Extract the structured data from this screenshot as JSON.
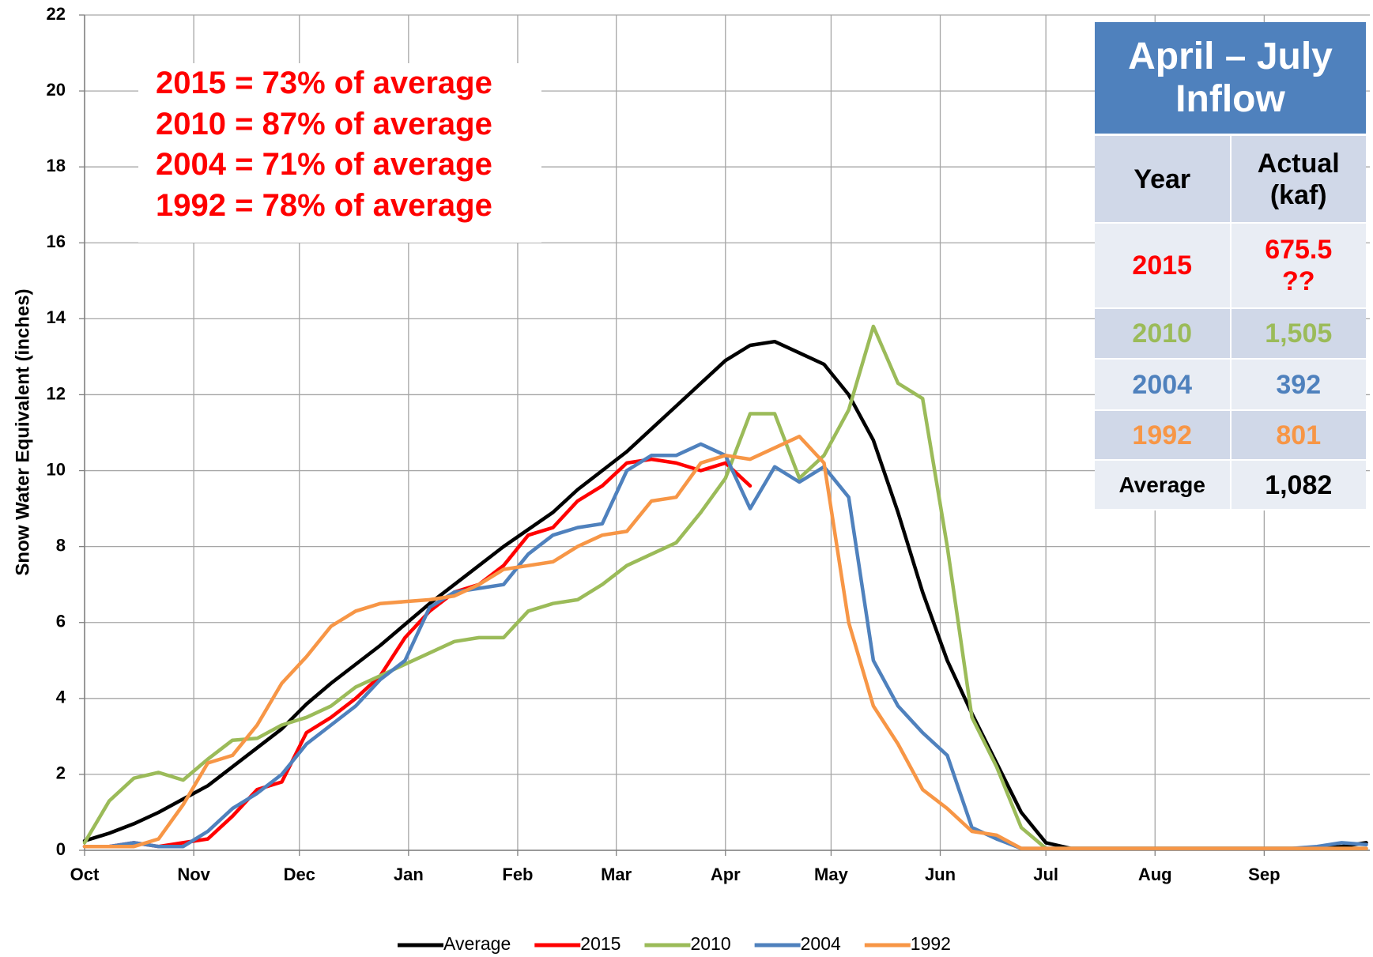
{
  "chart_data": {
    "type": "line",
    "y_label": "Snow Water Equivalent (inches)",
    "xlim": [
      0,
      365
    ],
    "xticks": [
      {
        "value": 0,
        "label": "Oct"
      },
      {
        "value": 31,
        "label": "Nov"
      },
      {
        "value": 61,
        "label": "Dec"
      },
      {
        "value": 92,
        "label": "Jan"
      },
      {
        "value": 123,
        "label": "Feb"
      },
      {
        "value": 151,
        "label": "Mar"
      },
      {
        "value": 182,
        "label": "Apr"
      },
      {
        "value": 212,
        "label": "May"
      },
      {
        "value": 243,
        "label": "Jun"
      },
      {
        "value": 273,
        "label": "Jul"
      },
      {
        "value": 304,
        "label": "Aug"
      },
      {
        "value": 335,
        "label": "Sep"
      }
    ],
    "ylim": [
      0,
      22
    ],
    "yticks": [
      0,
      2,
      4,
      6,
      8,
      10,
      12,
      14,
      16,
      18,
      20,
      22
    ],
    "grid": true,
    "legend": "bottom",
    "x": [
      0,
      7,
      14,
      21,
      28,
      35,
      42,
      49,
      56,
      63,
      70,
      77,
      84,
      91,
      98,
      105,
      112,
      119,
      126,
      133,
      140,
      147,
      154,
      161,
      168,
      175,
      182,
      189,
      196,
      203,
      210,
      217,
      224,
      231,
      238,
      245,
      252,
      259,
      266,
      273,
      280,
      287,
      294,
      301,
      308,
      315,
      322,
      329,
      336,
      343,
      350,
      357,
      364
    ],
    "series": [
      {
        "name": "Average",
        "color": "#000000",
        "values": [
          0.25,
          0.45,
          0.7,
          1.0,
          1.35,
          1.7,
          2.2,
          2.7,
          3.2,
          3.85,
          4.4,
          4.9,
          5.4,
          5.95,
          6.5,
          7.0,
          7.5,
          8.0,
          8.45,
          8.9,
          9.5,
          10.0,
          10.5,
          11.1,
          11.7,
          12.3,
          12.9,
          13.3,
          13.4,
          13.1,
          12.8,
          12.0,
          10.8,
          8.9,
          6.8,
          5.0,
          3.6,
          2.3,
          1.0,
          0.2,
          0.05,
          0.05,
          0.05,
          0.05,
          0.05,
          0.05,
          0.05,
          0.05,
          0.05,
          0.05,
          0.05,
          0.1,
          0.2
        ]
      },
      {
        "name": "2015",
        "color": "#ff0000",
        "values": [
          0.1,
          0.1,
          0.2,
          0.1,
          0.2,
          0.3,
          0.9,
          1.6,
          1.8,
          3.1,
          3.5,
          4.0,
          4.6,
          5.6,
          6.3,
          6.8,
          7.0,
          7.5,
          8.3,
          8.5,
          9.2,
          9.6,
          10.2,
          10.3,
          10.2,
          10.0,
          10.2,
          9.6,
          null,
          null,
          null,
          null,
          null,
          null,
          null,
          null,
          null,
          null,
          null,
          null,
          null,
          null,
          null,
          null,
          null,
          null,
          null,
          null,
          null,
          null,
          null,
          null,
          null
        ]
      },
      {
        "name": "2010",
        "color": "#9bbb59",
        "values": [
          0.2,
          1.3,
          1.9,
          2.05,
          1.85,
          2.4,
          2.9,
          2.95,
          3.3,
          3.5,
          3.8,
          4.3,
          4.6,
          4.9,
          5.2,
          5.5,
          5.6,
          5.6,
          6.3,
          6.5,
          6.6,
          7.0,
          7.5,
          7.8,
          8.1,
          8.9,
          9.8,
          11.5,
          11.5,
          9.8,
          10.4,
          11.6,
          13.8,
          12.3,
          11.9,
          8.0,
          3.5,
          2.2,
          0.6,
          0.05,
          0.05,
          0.05,
          0.05,
          0.05,
          0.05,
          0.05,
          0.05,
          0.05,
          0.05,
          0.05,
          0.05,
          0.05,
          0.05
        ]
      },
      {
        "name": "2004",
        "color": "#4f81bd",
        "values": [
          0.1,
          0.1,
          0.2,
          0.1,
          0.1,
          0.5,
          1.1,
          1.5,
          2.0,
          2.8,
          3.3,
          3.8,
          4.5,
          5.0,
          6.4,
          6.8,
          6.9,
          7.0,
          7.8,
          8.3,
          8.5,
          8.6,
          10.0,
          10.4,
          10.4,
          10.7,
          10.4,
          9.0,
          10.1,
          9.7,
          10.1,
          9.3,
          5.0,
          3.8,
          3.1,
          2.5,
          0.6,
          0.3,
          0.05,
          0.05,
          0.05,
          0.05,
          0.05,
          0.05,
          0.05,
          0.05,
          0.05,
          0.05,
          0.05,
          0.05,
          0.1,
          0.2,
          0.15
        ]
      },
      {
        "name": "1992",
        "color": "#f79646",
        "values": [
          0.1,
          0.1,
          0.1,
          0.3,
          1.2,
          2.3,
          2.5,
          3.3,
          4.4,
          5.1,
          5.9,
          6.3,
          6.5,
          6.55,
          6.6,
          6.7,
          7.0,
          7.4,
          7.5,
          7.6,
          8.0,
          8.3,
          8.4,
          9.2,
          9.3,
          10.2,
          10.4,
          10.3,
          10.6,
          10.9,
          10.2,
          6.0,
          3.8,
          2.8,
          1.6,
          1.1,
          0.5,
          0.4,
          0.05,
          0.05,
          0.05,
          0.05,
          0.05,
          0.05,
          0.05,
          0.05,
          0.05,
          0.05,
          0.05,
          0.05,
          0.05,
          0.05,
          0.05
        ]
      }
    ],
    "annotations": [
      "2015 = 73% of average",
      "2010 = 87% of average",
      "2004 = 71% of average",
      "1992 = 78% of average"
    ],
    "annotation_color": "#ff0000",
    "inflow_table": {
      "title": "April – July Inflow",
      "columns": [
        "Year",
        "Actual (kaf)"
      ],
      "rows": [
        {
          "cells": [
            "2015",
            "675.5\n??"
          ],
          "color": "#ff0000"
        },
        {
          "cells": [
            "2010",
            "1,505"
          ],
          "color": "#9bbb59"
        },
        {
          "cells": [
            "2004",
            "392"
          ],
          "color": "#4f81bd"
        },
        {
          "cells": [
            "1992",
            "801"
          ],
          "color": "#f79646"
        },
        {
          "cells": [
            "Average",
            "1,082"
          ],
          "color": "#000000"
        }
      ]
    }
  }
}
